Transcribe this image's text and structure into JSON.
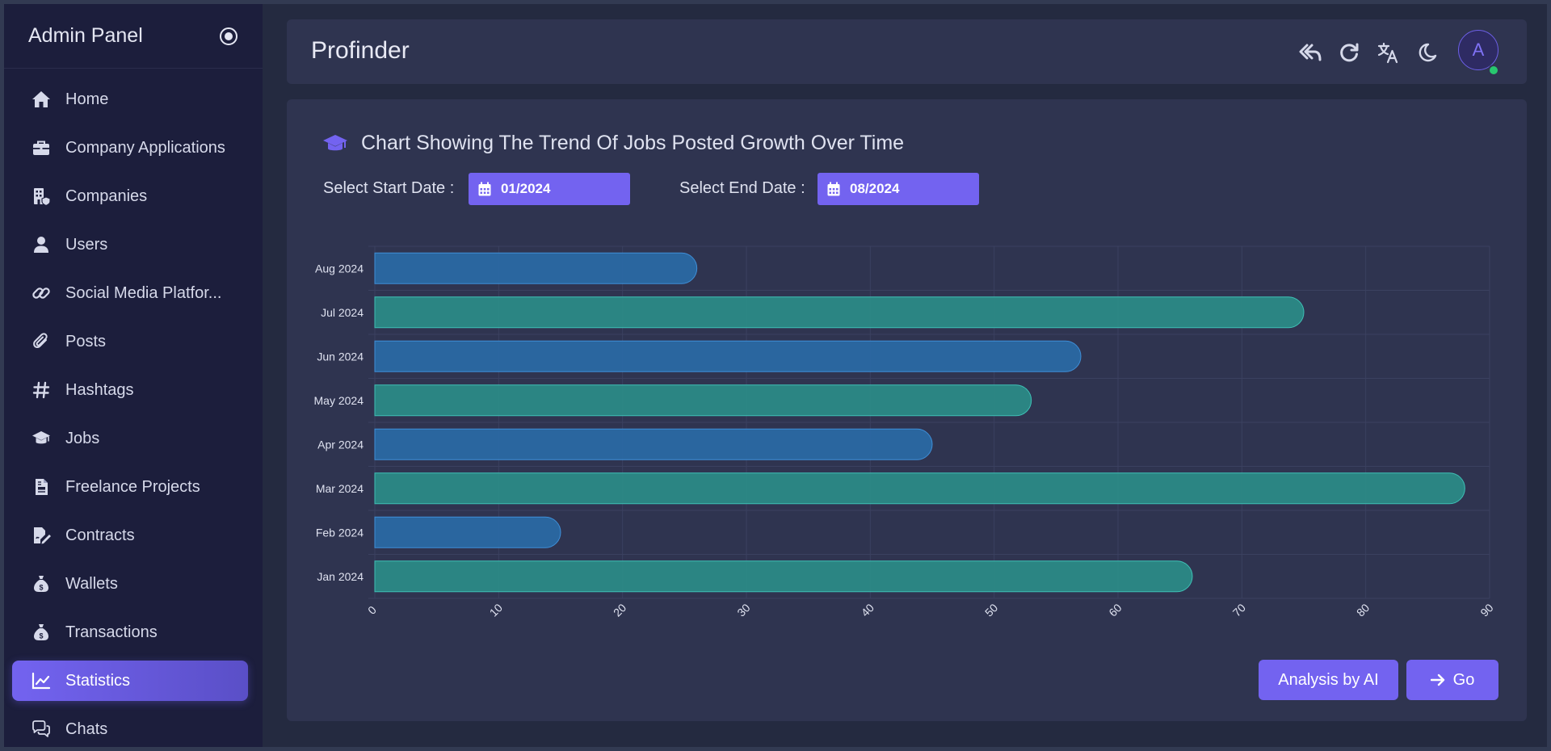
{
  "sidebar": {
    "title": "Admin Panel",
    "items": [
      {
        "label": "Home",
        "icon": "home-icon"
      },
      {
        "label": "Company Applications",
        "icon": "briefcase-icon"
      },
      {
        "label": "Companies",
        "icon": "building-icon"
      },
      {
        "label": "Users",
        "icon": "user-icon"
      },
      {
        "label": "Social Media Platfor...",
        "icon": "link-icon"
      },
      {
        "label": "Posts",
        "icon": "paperclip-icon"
      },
      {
        "label": "Hashtags",
        "icon": "hashtag-icon"
      },
      {
        "label": "Jobs",
        "icon": "graduation-cap-icon"
      },
      {
        "label": "Freelance Projects",
        "icon": "file-invoice-icon"
      },
      {
        "label": "Contracts",
        "icon": "file-signature-icon"
      },
      {
        "label": "Wallets",
        "icon": "money-bag-icon"
      },
      {
        "label": "Transactions",
        "icon": "money-bag-icon"
      },
      {
        "label": "Statistics",
        "icon": "chart-line-icon",
        "active": true
      },
      {
        "label": "Chats",
        "icon": "comments-icon"
      }
    ]
  },
  "header": {
    "title": "Profinder",
    "avatar_letter": "A"
  },
  "card": {
    "title": "Chart Showing The Trend Of Jobs Posted Growth Over Time",
    "start_label": "Select Start Date :",
    "start_value": "01/2024",
    "end_label": "Select End Date :",
    "end_value": "08/2024",
    "analysis_button": "Analysis by AI",
    "go_button": "Go"
  },
  "colors": {
    "accent": "#7363f0",
    "bar_blue": "#2a6aa6",
    "bar_teal": "#2b8c88"
  },
  "chart_data": {
    "type": "bar",
    "orientation": "horizontal",
    "categories": [
      "Aug 2024",
      "Jul 2024",
      "Jun 2024",
      "May 2024",
      "Apr 2024",
      "Mar 2024",
      "Feb 2024",
      "Jan 2024"
    ],
    "values": [
      26,
      75,
      57,
      53,
      45,
      88,
      15,
      66
    ],
    "bar_colors": [
      "#2a6aa6",
      "#2b8c88",
      "#2a6aa6",
      "#2b8c88",
      "#2a6aa6",
      "#2b8c88",
      "#2a6aa6",
      "#2b8c88"
    ],
    "xlim": [
      0,
      90
    ],
    "xticks": [
      0,
      10,
      20,
      30,
      40,
      50,
      60,
      70,
      80,
      90
    ],
    "grid": true,
    "legend": false
  }
}
